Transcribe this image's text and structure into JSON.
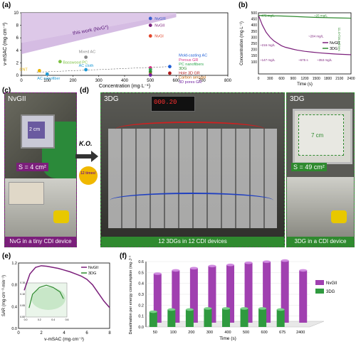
{
  "panels": {
    "a": "(a)",
    "b": "(b)",
    "c": "(c)",
    "d": "(d)",
    "e": "(e)",
    "f": "(f)"
  },
  "photos": {
    "c_title": "NvGII",
    "c_area": "S = 4 cm²",
    "c_area_line": "2 cm",
    "c_caption": "NvG in a tiny CDI device",
    "ko": "K.O.",
    "ko_badge": "12 times!",
    "d_title": "3DG",
    "d_caption": "12 3DGs in 12 CDI devices",
    "d_display": "000.20",
    "g_title": "3DG",
    "g_area_line": "7 cm",
    "g_area": "S = 49 cm²",
    "g_caption": "3DG in a CDI device"
  },
  "chart_data": [
    {
      "type": "scatter",
      "panel": "a",
      "xlabel": "Concentration (mg·L⁻¹)",
      "ylabel": "v-mSAC (mg·cm⁻³)",
      "xlim": [
        0,
        800
      ],
      "ylim": [
        0,
        10
      ],
      "xticks": [
        0,
        100,
        200,
        300,
        400,
        500,
        600,
        700,
        800
      ],
      "yticks": [
        0,
        2,
        4,
        6,
        8,
        10
      ],
      "annotation": "this work (NvG*)",
      "series": [
        {
          "name": "NvGIII",
          "color": "#3a5fcd",
          "x": [
            500
          ],
          "y": [
            9.1
          ]
        },
        {
          "name": "NvGII",
          "color": "#7b1f7b",
          "x": [
            500
          ],
          "y": [
            8.0
          ]
        },
        {
          "name": "NvGI",
          "color": "#e2452b",
          "x": [
            500
          ],
          "y": [
            6.3
          ]
        },
        {
          "name": "Mixed AC",
          "color": "#888888",
          "x": [
            250
          ],
          "y": [
            2.9
          ]
        },
        {
          "name": "Basswood PC",
          "color": "#7cc142",
          "x": [
            150
          ],
          "y": [
            2.2
          ]
        },
        {
          "name": "CNT",
          "color": "#e8b400",
          "x": [
            70
          ],
          "y": [
            0.75
          ]
        },
        {
          "name": "AC cloth",
          "color": "#1f9ad6",
          "x": [
            250
          ],
          "y": [
            0.9
          ]
        },
        {
          "name": "AC nanofiber",
          "color": "#1f9ad6",
          "x": [
            100
          ],
          "y": [
            0.2
          ]
        },
        {
          "name": "Mold-casting AC",
          "color": "#1f5fd6",
          "x": [
            575
          ],
          "y": [
            1.4
          ]
        },
        {
          "name": "Porous GR",
          "color": "#d6338a",
          "x": [
            500
          ],
          "y": [
            1.2
          ]
        },
        {
          "name": "PC nanofibers",
          "color": "#2fa84f",
          "x": [
            500
          ],
          "y": [
            0.9
          ]
        },
        {
          "name": "3DG",
          "color": "#2f8a2f",
          "x": [
            500
          ],
          "y": [
            0.55
          ]
        },
        {
          "name": "Hole 3D GR",
          "color": "#b01919",
          "x": [
            575
          ],
          "y": [
            0.35
          ]
        },
        {
          "name": "Carbon aerogel",
          "color": "#c06000",
          "x": [
            500
          ],
          "y": [
            0.15
          ]
        },
        {
          "name": "3D pores GR",
          "color": "#7020a0",
          "x": [
            500
          ],
          "y": [
            0.05
          ]
        }
      ]
    },
    {
      "type": "line",
      "panel": "b",
      "xlabel": "Time (s)",
      "ylabel": "Concentration (mg·L⁻¹)",
      "xlim": [
        0,
        2400
      ],
      "ylim": [
        0,
        500
      ],
      "xticks": [
        0,
        300,
        600,
        900,
        1200,
        1500,
        1800,
        2100,
        2400
      ],
      "yticks": [
        100,
        150,
        200,
        250,
        300,
        350,
        400,
        450,
        500
      ],
      "legend": [
        "NvGII",
        "3DG"
      ],
      "annotations": [
        "475 mg/L",
        "~25 mg/L",
        "11.4×/16.4 times",
        "~284 mg/L",
        "~216 mg/L",
        "~147 mg/L",
        "~675 s",
        "~353 mg/L"
      ],
      "series": [
        {
          "name": "NvGII",
          "color": "#7b1f7b",
          "x": [
            0,
            100,
            200,
            300,
            400,
            500,
            600,
            700,
            800,
            900,
            1000,
            1200,
            1400,
            1600,
            1800,
            2000,
            2200,
            2400
          ],
          "y": [
            480,
            400,
            340,
            300,
            270,
            250,
            230,
            218,
            210,
            202,
            195,
            185,
            178,
            172,
            167,
            163,
            160,
            157
          ]
        },
        {
          "name": "3DG",
          "color": "#2f8a2f",
          "x": [
            0,
            300,
            600,
            900,
            1200,
            1500,
            1800,
            2100,
            2400
          ],
          "y": [
            478,
            476,
            474,
            470,
            466,
            462,
            460,
            458,
            456
          ]
        }
      ]
    },
    {
      "type": "line",
      "panel": "e",
      "xlabel": "v-mSAC (mg·cm⁻³)",
      "ylabel": "SAR (mg·cm⁻³·min⁻¹)",
      "xlim": [
        0,
        8
      ],
      "ylim": [
        0,
        1.2
      ],
      "xticks": [
        0,
        2,
        4,
        6,
        8
      ],
      "yticks": [
        0.0,
        0.4,
        0.8,
        1.2
      ],
      "inset_ticks_x": [
        0.0,
        0.2,
        0.4,
        0.6
      ],
      "inset_ticks_y": [
        0.0,
        0.05,
        0.1,
        0.15
      ],
      "legend": [
        "NvGII",
        "3DG"
      ],
      "series": [
        {
          "name": "NvGII",
          "color": "#7b1f7b",
          "x": [
            0.5,
            1.0,
            1.5,
            2.0,
            2.5,
            3.0,
            3.5,
            4.0,
            4.5,
            5.0,
            5.5,
            6.0,
            6.5,
            7.0,
            7.5,
            8.0
          ],
          "y": [
            0.7,
            1.0,
            1.12,
            1.15,
            1.14,
            1.12,
            1.1,
            1.07,
            1.04,
            1.0,
            0.96,
            0.9,
            0.8,
            0.65,
            0.5,
            0.38
          ]
        },
        {
          "name": "3DG",
          "color": "#2f8a2f",
          "x": [
            0.05,
            0.1,
            0.2,
            0.3,
            0.4,
            0.5,
            0.55
          ],
          "y": [
            0.04,
            0.1,
            0.13,
            0.14,
            0.13,
            0.11,
            0.08
          ]
        }
      ]
    },
    {
      "type": "bar",
      "panel": "f",
      "xlabel": "Time (s)",
      "ylabel": "Desalination per energy consumption (mg·J⁻¹)",
      "categories": [
        "50",
        "100",
        "200",
        "300",
        "400",
        "500",
        "600",
        "675",
        "2400"
      ],
      "ylim": [
        0,
        0.6
      ],
      "yticks": [
        0.0,
        0.1,
        0.2,
        0.3,
        0.4,
        0.5,
        0.6
      ],
      "legend": [
        "NvGII",
        "3DG"
      ],
      "series": [
        {
          "name": "NvGII",
          "color": "#a040b0",
          "values": [
            0.45,
            0.48,
            0.5,
            0.52,
            0.53,
            0.55,
            0.56,
            0.57,
            0.48
          ]
        },
        {
          "name": "3DG",
          "color": "#2f9a3f",
          "values": [
            0.14,
            0.16,
            0.16,
            0.17,
            0.17,
            0.17,
            0.17,
            0.16,
            null
          ]
        }
      ]
    }
  ]
}
